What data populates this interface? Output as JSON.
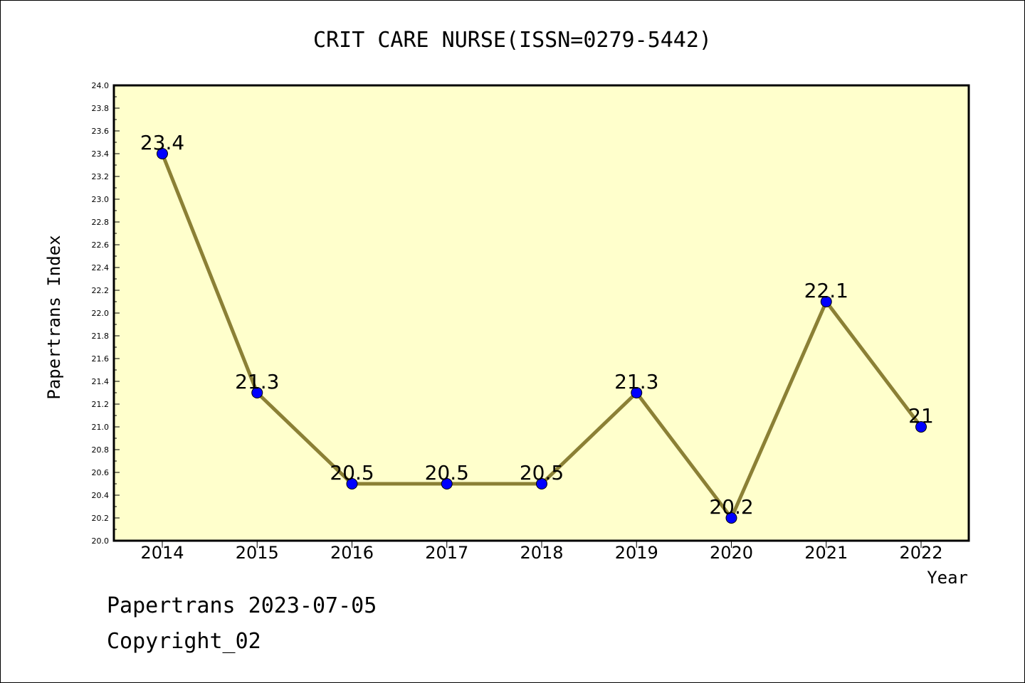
{
  "chart_data": {
    "type": "line",
    "title": "CRIT CARE NURSE(ISSN=0279-5442)",
    "xlabel": "Year",
    "ylabel": "Papertrans Index",
    "categories": [
      "2014",
      "2015",
      "2016",
      "2017",
      "2018",
      "2019",
      "2020",
      "2021",
      "2022"
    ],
    "series": [
      {
        "values": [
          23.4,
          21.3,
          20.5,
          20.5,
          20.5,
          21.3,
          20.2,
          22.1,
          21.0
        ],
        "data_labels": [
          "23.4",
          "21.3",
          "20.5",
          "20.5",
          "20.5",
          "21.3",
          "20.2",
          "22.1",
          "21"
        ]
      }
    ],
    "ylim": [
      20.0,
      24.0
    ],
    "yticks": [
      "20.0",
      "20.2",
      "20.4",
      "20.6",
      "20.8",
      "21.0",
      "21.2",
      "21.4",
      "21.6",
      "21.8",
      "22.0",
      "22.2",
      "22.4",
      "22.6",
      "22.8",
      "23.0",
      "23.2",
      "23.4",
      "23.6",
      "23.8",
      "24.0"
    ],
    "grid": false,
    "legend": "none",
    "colors": {
      "plot_background": "#ffffcc",
      "line": "#8b8035",
      "marker": "#0000ff"
    }
  },
  "footer": {
    "line1": "Papertrans 2023-07-05",
    "line2": "Copyright_02"
  }
}
